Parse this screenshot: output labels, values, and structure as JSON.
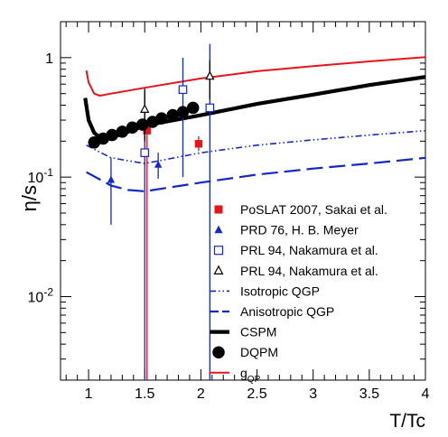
{
  "chart_data": {
    "type": "line",
    "title": "",
    "xlabel": "T/Tc",
    "ylabel": "η/s",
    "xlim": [
      0.75,
      4.0
    ],
    "ylim": [
      0.002,
      2.0
    ],
    "yscale": "log",
    "grid": false,
    "legend_position": "center-right",
    "x_ticks": [
      {
        "value": 1.0,
        "label": "1"
      },
      {
        "value": 1.5,
        "label": "1.5"
      },
      {
        "value": 2.0,
        "label": "2"
      },
      {
        "value": 2.5,
        "label": "2.5"
      },
      {
        "value": 3.0,
        "label": "3"
      },
      {
        "value": 3.5,
        "label": "3.5"
      },
      {
        "value": 4.0,
        "label": "4"
      }
    ],
    "y_ticks": [
      {
        "value": 0.01,
        "base": "10",
        "exp": "-2"
      },
      {
        "value": 0.1,
        "base": "10",
        "exp": "-1"
      },
      {
        "value": 1.0,
        "label": "1"
      }
    ],
    "series": [
      {
        "name": "PoSLAT 2007, Sakai et al.",
        "kind": "points",
        "marker": "square-filled",
        "color": "#e8141a",
        "points": [
          {
            "x": 1.52,
            "y": 0.245,
            "ylo": 0.002,
            "yhi": 0.27
          },
          {
            "x": 1.98,
            "y": 0.19,
            "ylo": 0.165,
            "yhi": 0.22
          }
        ]
      },
      {
        "name": "PRD 76, H. B. Meyer",
        "kind": "points",
        "marker": "triangle-filled",
        "color": "#1428c8",
        "points": [
          {
            "x": 1.2,
            "y": 0.095,
            "ylo": 0.04,
            "yhi": 0.145
          },
          {
            "x": 1.62,
            "y": 0.127,
            "ylo": 0.097,
            "yhi": 0.16
          }
        ]
      },
      {
        "name": "PRL 94, Nakamura et al.",
        "kind": "points",
        "marker": "square-open",
        "color": "#1428c8",
        "points": [
          {
            "x": 1.5,
            "y": 0.16,
            "ylo": 0.002,
            "yhi": 0.52
          },
          {
            "x": 1.84,
            "y": 0.54,
            "ylo": 0.1,
            "yhi": 1.0
          },
          {
            "x": 2.08,
            "y": 0.38,
            "ylo": 0.002,
            "yhi": 1.3
          }
        ]
      },
      {
        "name": "PRL 94, Nakamura et al.",
        "kind": "points",
        "marker": "triangle-open",
        "color": "#000000",
        "points": [
          {
            "x": 1.5,
            "y": 0.37,
            "ylo": 0.2,
            "yhi": 0.55
          },
          {
            "x": 2.08,
            "y": 0.7,
            "ylo": 0.45,
            "yhi": 0.95
          }
        ]
      },
      {
        "name": "Isotropic QGP",
        "kind": "line",
        "style": "dash-dot-dot",
        "color": "#1428c8",
        "points": [
          [
            0.98,
            0.185
          ],
          [
            1.2,
            0.145
          ],
          [
            1.5,
            0.13
          ],
          [
            2.0,
            0.16
          ],
          [
            2.5,
            0.185
          ],
          [
            3.0,
            0.205
          ],
          [
            3.5,
            0.225
          ],
          [
            4.0,
            0.245
          ]
        ]
      },
      {
        "name": "Anisotropic QGP",
        "kind": "line",
        "style": "long-dash",
        "color": "#1428c8",
        "points": [
          [
            0.98,
            0.11
          ],
          [
            1.2,
            0.085
          ],
          [
            1.35,
            0.078
          ],
          [
            1.5,
            0.076
          ],
          [
            2.0,
            0.09
          ],
          [
            2.5,
            0.105
          ],
          [
            3.0,
            0.118
          ],
          [
            3.5,
            0.13
          ],
          [
            4.0,
            0.145
          ]
        ]
      },
      {
        "name": "CSPM",
        "kind": "line",
        "style": "solid-thick",
        "color": "#000000",
        "points": [
          [
            0.97,
            0.46
          ],
          [
            1.0,
            0.3
          ],
          [
            1.05,
            0.235
          ],
          [
            1.1,
            0.215
          ],
          [
            1.2,
            0.215
          ],
          [
            1.3,
            0.23
          ],
          [
            1.5,
            0.27
          ],
          [
            2.0,
            0.33
          ],
          [
            2.5,
            0.41
          ],
          [
            3.0,
            0.49
          ],
          [
            3.5,
            0.59
          ],
          [
            4.0,
            0.69
          ]
        ]
      },
      {
        "name": "DQPM",
        "kind": "points",
        "marker": "circle-filled",
        "color": "#000000",
        "points": [
          {
            "x": 1.05,
            "y": 0.195
          },
          {
            "x": 1.13,
            "y": 0.21
          },
          {
            "x": 1.21,
            "y": 0.225
          },
          {
            "x": 1.3,
            "y": 0.24
          },
          {
            "x": 1.39,
            "y": 0.26
          },
          {
            "x": 1.48,
            "y": 0.275
          },
          {
            "x": 1.57,
            "y": 0.29
          },
          {
            "x": 1.65,
            "y": 0.31
          },
          {
            "x": 1.75,
            "y": 0.33
          },
          {
            "x": 1.84,
            "y": 0.35
          },
          {
            "x": 1.93,
            "y": 0.38
          }
        ]
      },
      {
        "name": "g",
        "name_sub": "QP",
        "kind": "line",
        "style": "solid",
        "color": "#e8141a",
        "points": [
          [
            0.98,
            0.78
          ],
          [
            1.0,
            0.62
          ],
          [
            1.05,
            0.5
          ],
          [
            1.1,
            0.48
          ],
          [
            1.2,
            0.5
          ],
          [
            1.5,
            0.56
          ],
          [
            2.0,
            0.67
          ],
          [
            2.5,
            0.77
          ],
          [
            3.0,
            0.85
          ],
          [
            3.5,
            0.93
          ],
          [
            4.0,
            1.01
          ]
        ]
      }
    ]
  }
}
